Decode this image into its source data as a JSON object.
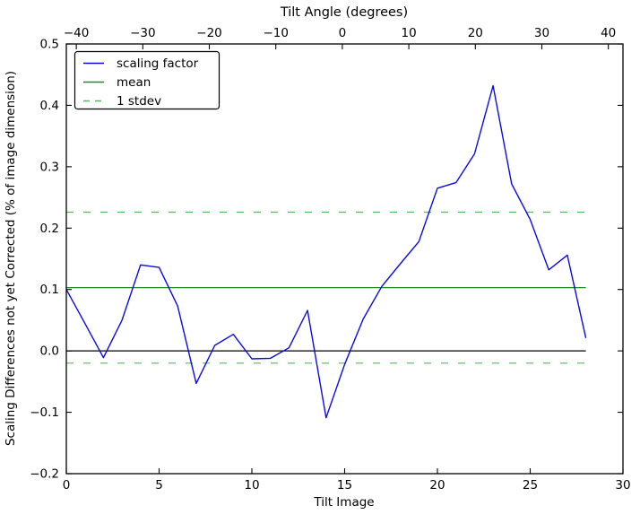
{
  "chart_data": {
    "type": "line",
    "title": "Tilt Angle (degrees)",
    "xlabel": "Tilt Image",
    "ylabel": "Scaling Differences not yet Corrected (% of image dimension)",
    "xlim": [
      0,
      30
    ],
    "ylim": [
      -0.2,
      0.5
    ],
    "grid": false,
    "legend_position": "upper left",
    "series": [
      {
        "name": "scaling factor",
        "color": "#0b0be0",
        "x": [
          0,
          1,
          2,
          3,
          4,
          5,
          6,
          7,
          8,
          9,
          10,
          11,
          12,
          13,
          14,
          15,
          16,
          17,
          18,
          19,
          20,
          21,
          22,
          23,
          24,
          25,
          26,
          27,
          28
        ],
        "y": [
          0.1,
          0.045,
          -0.011,
          0.05,
          0.14,
          0.136,
          0.073,
          -0.053,
          0.009,
          0.027,
          -0.013,
          -0.012,
          0.005,
          0.066,
          -0.109,
          -0.022,
          0.052,
          0.105,
          0.142,
          0.178,
          0.265,
          0.274,
          0.321,
          0.432,
          0.272,
          0.214,
          0.132,
          0.156,
          0.021
        ]
      }
    ],
    "mean": 0.103,
    "stdev": 0.123,
    "mean_line": {
      "value": 0.103,
      "color": "#1f8c1f",
      "span_x": [
        0,
        28
      ]
    },
    "stdev_lines": {
      "values": [
        0.226,
        -0.02
      ],
      "color": "#5cb55c",
      "dash": [
        8,
        11
      ],
      "span_x": [
        0,
        28
      ]
    },
    "zero_line": {
      "value": 0.0,
      "color": "#000000",
      "span_x": [
        0,
        28
      ]
    },
    "x_axis": {
      "label": "Tilt Image",
      "ticks": [
        {
          "value": 0,
          "label": "0"
        },
        {
          "value": 5,
          "label": "5"
        },
        {
          "value": 10,
          "label": "10"
        },
        {
          "value": 15,
          "label": "15"
        },
        {
          "value": 20,
          "label": "20"
        },
        {
          "value": 25,
          "label": "25"
        },
        {
          "value": 30,
          "label": "30"
        }
      ]
    },
    "y_axis": {
      "ticks": [
        {
          "value": 0.5,
          "label": "0.5"
        },
        {
          "value": 0.4,
          "label": "0.4"
        },
        {
          "value": 0.3,
          "label": "0.3"
        },
        {
          "value": 0.2,
          "label": "0.2"
        },
        {
          "value": 0.1,
          "label": "0.1"
        },
        {
          "value": 0.0,
          "label": "0.0"
        },
        {
          "value": -0.1,
          "label": "−0.1"
        },
        {
          "value": -0.2,
          "label": "−0.2"
        }
      ]
    },
    "top_axis": {
      "label": "Tilt Angle (degrees)",
      "lim": [
        -41.5,
        42.2
      ],
      "ticks": [
        {
          "value": -40,
          "label": "−40"
        },
        {
          "value": -30,
          "label": "−30"
        },
        {
          "value": -20,
          "label": "−20"
        },
        {
          "value": -10,
          "label": "−10"
        },
        {
          "value": 0,
          "label": "0"
        },
        {
          "value": 10,
          "label": "10"
        },
        {
          "value": 20,
          "label": "20"
        },
        {
          "value": 30,
          "label": "30"
        },
        {
          "value": 40,
          "label": "40"
        }
      ]
    },
    "legend": [
      {
        "label": "scaling factor",
        "color": "#0b0be0",
        "dash": false
      },
      {
        "label": "mean",
        "color": "#1f8c1f",
        "dash": false
      },
      {
        "label": "1 stdev",
        "color": "#5cb55c",
        "dash": true
      }
    ],
    "colors": {
      "background": "#ffffff",
      "axes": "#000000"
    }
  }
}
